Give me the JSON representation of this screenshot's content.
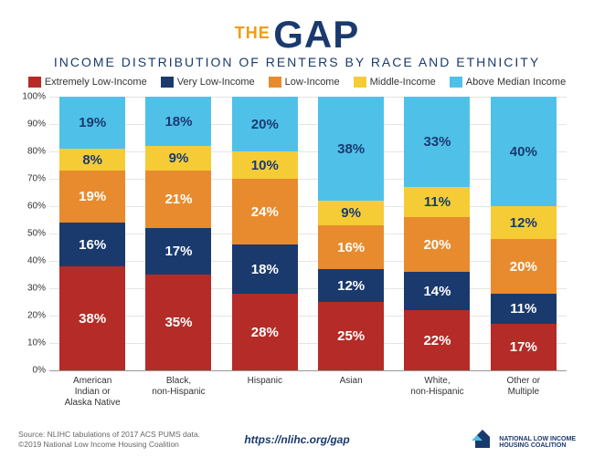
{
  "logo": {
    "the": "THE",
    "gap": "GAP"
  },
  "subtitle": "INCOME DISTRIBUTION OF RENTERS BY RACE AND ETHNICITY",
  "legend": [
    {
      "label": "Extremely Low-Income",
      "color": "#b52b27"
    },
    {
      "label": "Very Low-Income",
      "color": "#1a3a6e"
    },
    {
      "label": "Low-Income",
      "color": "#e88b2e"
    },
    {
      "label": "Middle-Income",
      "color": "#f5cc36"
    },
    {
      "label": "Above Median Income",
      "color": "#4fc1e9"
    }
  ],
  "chart": {
    "type": "stacked-bar",
    "y_max": 100,
    "y_step": 10,
    "y_suffix": "%",
    "categories": [
      "American Indian or Alaska Native",
      "Black, non-Hispanic",
      "Hispanic",
      "Asian",
      "White, non-Hispanic",
      "Other or Multiple"
    ],
    "text_colors": {
      "light_segments": "#1a3a6e",
      "default": "#ffffff"
    },
    "series": [
      {
        "name": "Extremely Low-Income",
        "color": "#b52b27",
        "values": [
          38,
          35,
          28,
          25,
          22,
          17
        ]
      },
      {
        "name": "Very Low-Income",
        "color": "#1a3a6e",
        "values": [
          16,
          17,
          18,
          12,
          14,
          11
        ]
      },
      {
        "name": "Low-Income",
        "color": "#e88b2e",
        "values": [
          19,
          21,
          24,
          16,
          20,
          20
        ]
      },
      {
        "name": "Middle-Income",
        "color": "#f5cc36",
        "values": [
          8,
          9,
          10,
          9,
          11,
          12
        ],
        "text": "dark"
      },
      {
        "name": "Above Median Income",
        "color": "#4fc1e9",
        "values": [
          19,
          18,
          20,
          38,
          33,
          40
        ],
        "text": "dark"
      }
    ]
  },
  "source": {
    "line1": "Source: NLIHC tabulations of 2017 ACS PUMS data.",
    "line2": "©2019 National Low Income Housing Coalition"
  },
  "url": "https://nlihc.org/gap",
  "org": {
    "line1": "NATIONAL LOW INCOME",
    "line2": "HOUSING COALITION"
  },
  "brand_colors": {
    "accent": "#f39c12",
    "primary": "#1a3a6e"
  }
}
